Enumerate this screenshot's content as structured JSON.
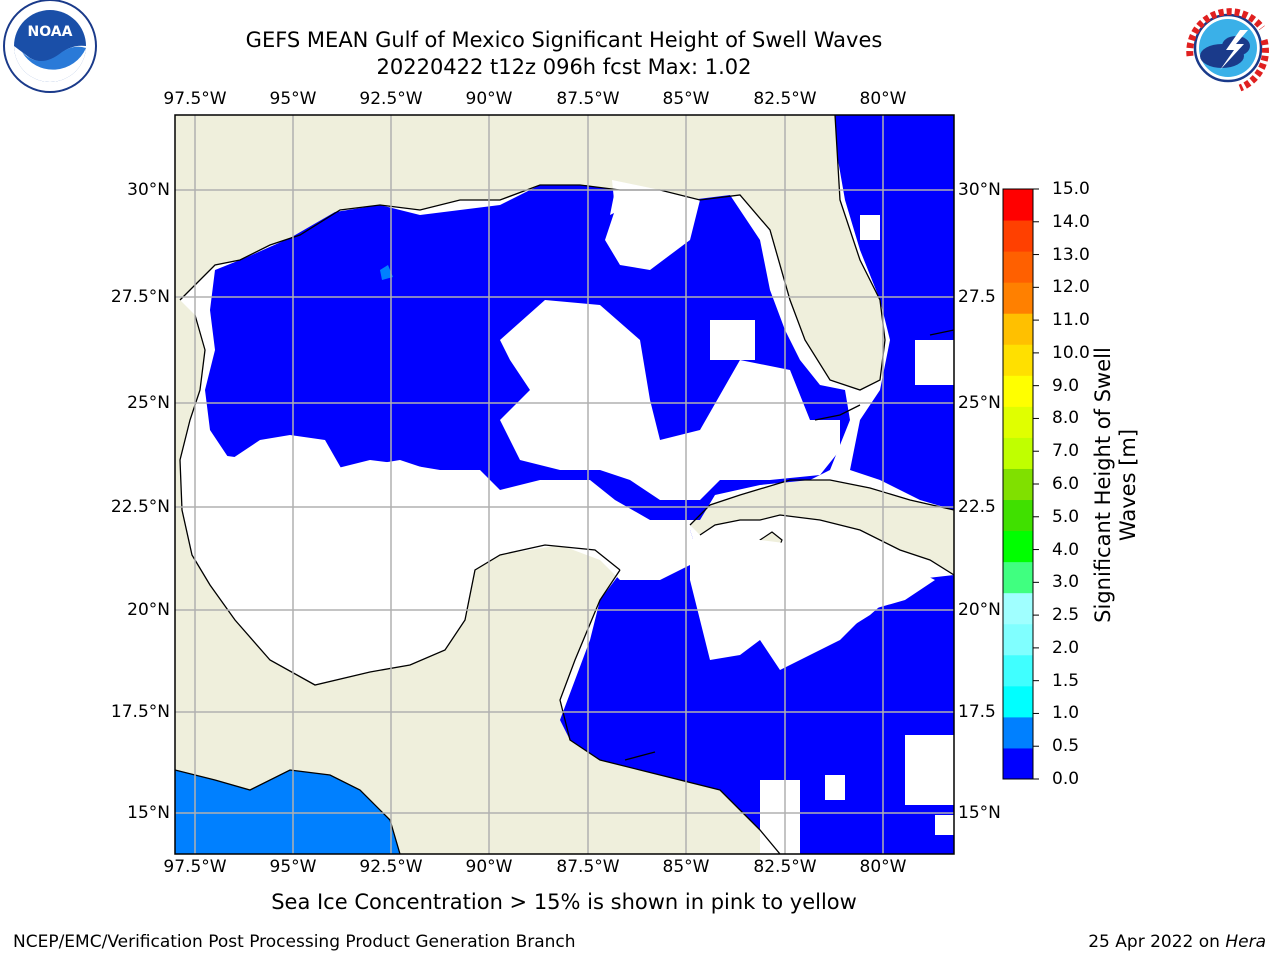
{
  "header": {
    "title_line1": "GEFS MEAN Gulf of Mexico Significant Height of Swell Waves",
    "title_line2": "20220422 t12z 096h fcst   Max: 1.02"
  },
  "logos": {
    "left": {
      "name": "NOAA",
      "ring_text": "NATIONAL OCEANIC AND ATMOSPHERIC ADMINISTRATION · U.S. DEPARTMENT OF COMMERCE"
    },
    "right": {
      "name": "NATIONAL WEATHER SERVICE"
    }
  },
  "map": {
    "lon_ticks": [
      "97.5°W",
      "95°W",
      "92.5°W",
      "90°W",
      "87.5°W",
      "85°W",
      "82.5°W",
      "80°W"
    ],
    "lat_ticks": [
      "30°N",
      "27.5°N",
      "25°N",
      "22.5°N",
      "20°N",
      "17.5°N",
      "15°N"
    ],
    "lat_ticks_right": [
      "30°N",
      "27.5",
      "25°N",
      "22.5",
      "20°N",
      "17.5",
      "15°N"
    ],
    "colors": {
      "land": "#efefdc",
      "swell_low": "#0000ff",
      "swell_mid": "#0080ff",
      "no_data": "#ffffff",
      "grid": "#b0b0b0"
    }
  },
  "colorbar": {
    "label": "Significant Height of Swell Waves [m]",
    "ticks": [
      "0.0",
      "0.5",
      "1.0",
      "1.5",
      "2.0",
      "2.5",
      "3.0",
      "4.0",
      "5.0",
      "6.0",
      "7.0",
      "8.0",
      "9.0",
      "10.0",
      "11.0",
      "12.0",
      "13.0",
      "14.0",
      "15.0"
    ],
    "colors": [
      "#0000ff",
      "#0080ff",
      "#00ffff",
      "#40ffff",
      "#80ffff",
      "#a0ffff",
      "#40ff80",
      "#00ff00",
      "#40e000",
      "#80e000",
      "#c0ff00",
      "#e0ff00",
      "#ffff00",
      "#ffe000",
      "#ffc000",
      "#ff8000",
      "#ff6000",
      "#ff4000",
      "#ff0000"
    ]
  },
  "footnote": "Sea Ice Concentration > 15% is shown in pink to yellow",
  "credits": {
    "left": "NCEP/EMC/Verification Post Processing Product Generation Branch",
    "right_prefix": "25 Apr 2022 on ",
    "right_host": "Hera"
  }
}
